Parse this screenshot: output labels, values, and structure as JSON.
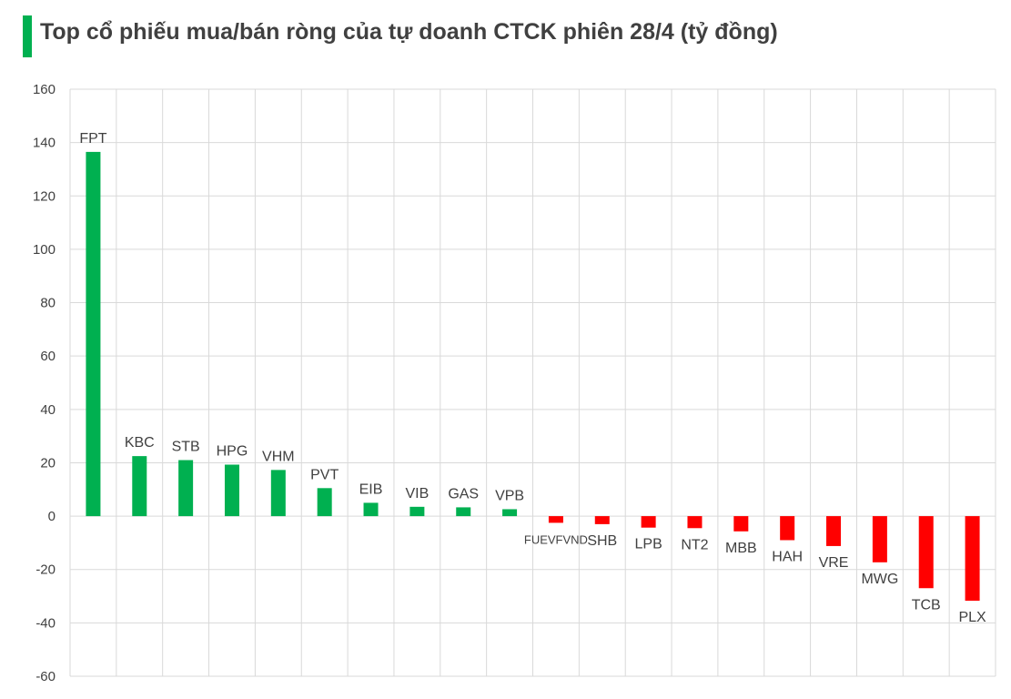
{
  "title": "Top cổ phiếu mua/bán ròng của tự doanh CTCK phiên 28/4 (tỷ đồng)",
  "colors": {
    "accent": "#00b050",
    "positive": "#00b050",
    "negative": "#ff0000",
    "grid": "#d9d9d9",
    "text": "#404040"
  },
  "chart_data": {
    "type": "bar",
    "title": "Top cổ phiếu mua/bán ròng của tự doanh CTCK phiên 28/4 (tỷ đồng)",
    "xlabel": "",
    "ylabel": "",
    "ylim": [
      -60,
      160
    ],
    "yticks": [
      160,
      140,
      120,
      100,
      80,
      60,
      40,
      20,
      0,
      -20,
      -40,
      -60
    ],
    "grid": true,
    "categories": [
      "FPT",
      "KBC",
      "STB",
      "HPG",
      "VHM",
      "PVT",
      "EIB",
      "VIB",
      "GAS",
      "VPB",
      "FUEVFVND",
      "SHB",
      "LPB",
      "NT2",
      "MBB",
      "HAH",
      "VRE",
      "MWG",
      "TCB",
      "PLX"
    ],
    "values": [
      136.5,
      22.5,
      21,
      19.3,
      17.3,
      10.5,
      5,
      3.5,
      3.3,
      2.6,
      -2.5,
      -3,
      -4.3,
      -4.5,
      -5.7,
      -9,
      -11.2,
      -17.3,
      -27,
      -31.7
    ]
  }
}
